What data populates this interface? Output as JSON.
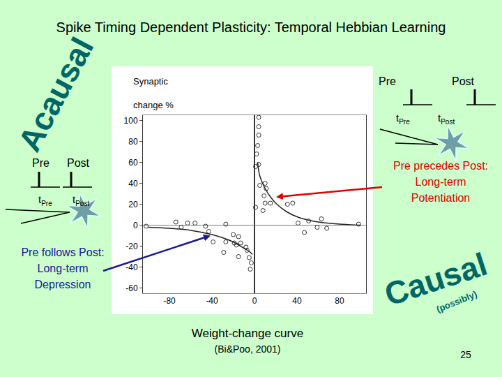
{
  "chart_data": {
    "type": "scatter",
    "ylabel": "Synaptic\nchange %",
    "xlim": [
      -105,
      105
    ],
    "ylim": [
      -65,
      105
    ],
    "xticks": [
      -80,
      -40,
      0,
      40,
      80
    ],
    "yticks": [
      100,
      80,
      60,
      40,
      20,
      0,
      -20,
      -40,
      -60
    ],
    "grid": false,
    "series": [
      {
        "type": "scatter",
        "marker": "circle-open",
        "color": "#333333",
        "x": [
          4,
          4,
          4,
          3,
          2,
          1,
          4,
          5,
          9,
          10,
          10,
          15,
          8,
          36,
          31,
          63,
          68,
          51,
          41,
          47,
          59,
          98,
          1,
          11,
          -102,
          -74,
          -63,
          -69,
          -56,
          -46,
          -43,
          -39,
          -27,
          -29,
          -20,
          -17,
          -19,
          -15,
          -13,
          -8,
          -7,
          -5,
          -4,
          -15,
          -27,
          -3
        ],
        "values": [
          103,
          94,
          86,
          76,
          68,
          56,
          58,
          38,
          28,
          21,
          40,
          21,
          14,
          21,
          20,
          6,
          -3,
          4,
          2,
          -7,
          -2,
          1,
          17,
          35,
          -1,
          3,
          2,
          -2,
          2,
          -1,
          -6,
          -16,
          1,
          -26,
          -9,
          -19,
          -17,
          -30,
          -17,
          -21,
          -24,
          -31,
          -42,
          -11,
          -16,
          -36
        ]
      },
      {
        "type": "line",
        "line_style": "solid",
        "color": "#222222",
        "x": [
          3,
          5,
          10,
          15,
          20,
          30,
          40,
          50,
          60,
          80,
          100
        ],
        "values": [
          60,
          47,
          35,
          27,
          21,
          13,
          8,
          5,
          3,
          1,
          0
        ]
      },
      {
        "type": "line",
        "line_style": "solid",
        "color": "#222222",
        "x": [
          -100,
          -80,
          -60,
          -40,
          -30,
          -20,
          -10,
          -5,
          -2
        ],
        "values": [
          -2,
          -3,
          -5,
          -9,
          -12,
          -16,
          -22,
          -25,
          -28
        ]
      }
    ]
  },
  "slide": {
    "title": "Spike Timing Dependent Plasticity: Temporal Hebbian Learning",
    "acausal": "Acausal",
    "causal": "Causal",
    "causal_note": "(possibly)",
    "ltp_label": [
      "Pre precedes Post:",
      "Long-term",
      "Potentiation"
    ],
    "ltd_label": [
      "Pre follows Post:",
      "Long-term",
      "Depression"
    ],
    "diagrams": [
      {
        "pre": "Pre",
        "post": "Post",
        "t": "t",
        "pre_sub": "Pre",
        "post_sub": "Post"
      },
      {
        "pre": "Pre",
        "post": "Post",
        "t": "t",
        "pre_sub": "Pre",
        "post_sub": "Post"
      }
    ],
    "caption": "Weight-change curve",
    "citation": "(Bi&Poo, 2001)",
    "page": "25"
  }
}
